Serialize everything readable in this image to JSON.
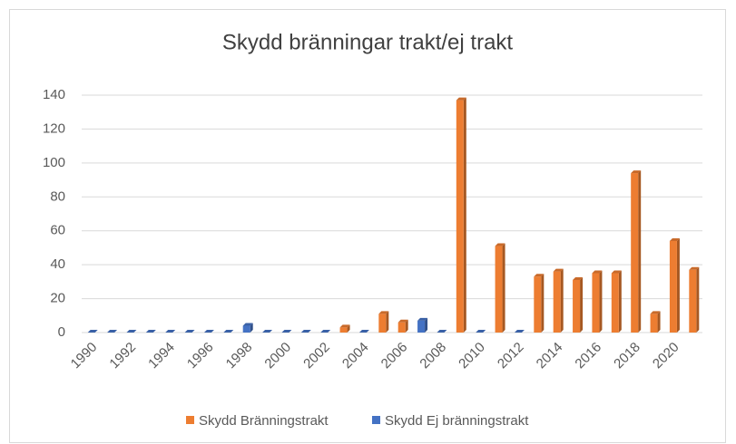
{
  "chart_data": {
    "type": "bar",
    "title": "Skydd bränningar trakt/ej trakt",
    "categories": [
      1990,
      null,
      1992,
      null,
      1994,
      null,
      1996,
      null,
      1998,
      null,
      2000,
      null,
      2002,
      null,
      2004,
      null,
      2006,
      null,
      2008,
      null,
      2010,
      null,
      2012,
      null,
      2014,
      null,
      2016,
      null,
      2018,
      null,
      2020,
      null
    ],
    "series": [
      {
        "name": "Skydd Bränningstrakt",
        "color": "#ed7d31",
        "values": [
          0,
          0,
          0,
          0,
          0,
          0,
          0,
          0,
          0,
          0,
          0,
          0,
          0,
          3,
          0,
          11,
          6,
          0,
          0,
          137,
          0,
          51,
          0,
          33,
          36,
          31,
          35,
          35,
          94,
          11,
          54,
          37
        ]
      },
      {
        "name": "Skydd Ej bränningstrakt",
        "color": "#4472c4",
        "values": [
          0,
          0,
          0,
          0,
          0,
          0,
          0,
          0,
          4,
          0,
          0,
          0,
          0,
          0,
          0,
          0,
          0,
          7,
          0,
          0,
          0,
          0,
          0,
          0,
          0,
          0,
          0,
          0,
          0,
          0,
          0,
          0
        ]
      }
    ],
    "ylim": [
      0,
      140
    ],
    "yticks": [
      0,
      20,
      40,
      60,
      80,
      100,
      120,
      140
    ],
    "grid": true
  }
}
